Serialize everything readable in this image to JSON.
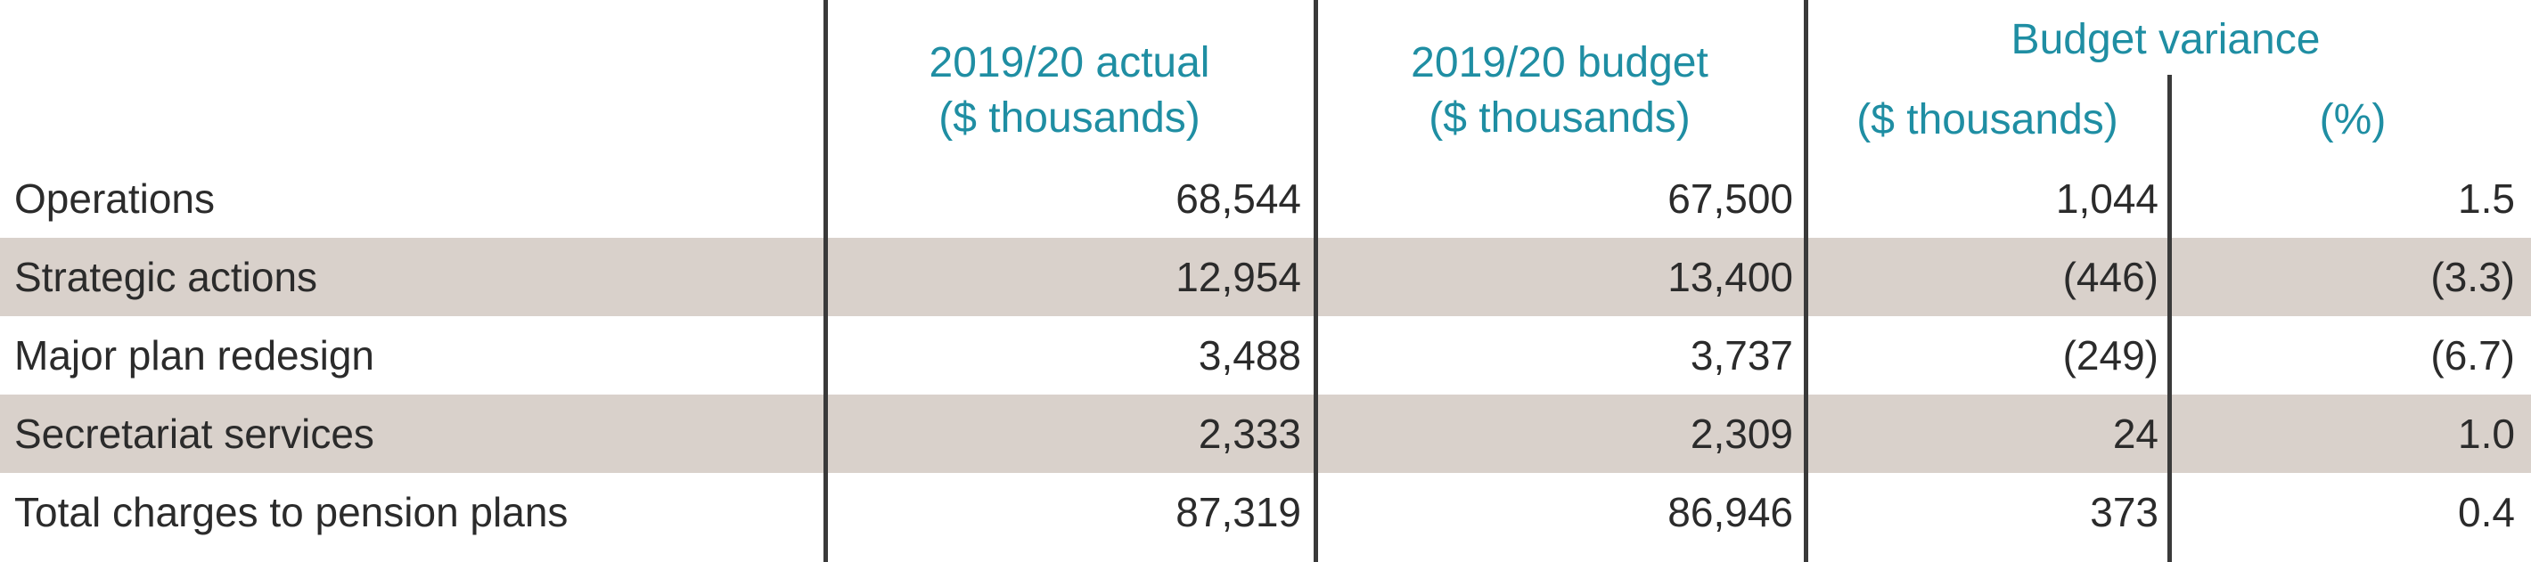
{
  "headers": {
    "actual_line1": "2019/20 actual",
    "actual_line2": "($ thousands)",
    "budget_line1": "2019/20 budget",
    "budget_line2": "($ thousands)",
    "variance_group": "Budget variance",
    "variance_amount": "($ thousands)",
    "variance_percent": "(%)"
  },
  "rows": [
    {
      "label": "Operations",
      "actual": "68,544",
      "budget": "67,500",
      "variance": "1,044",
      "percent": "1.5",
      "shaded": false
    },
    {
      "label": "Strategic actions",
      "actual": "12,954",
      "budget": "13,400",
      "variance": "(446)",
      "percent": "(3.3)",
      "shaded": true
    },
    {
      "label": "Major plan redesign",
      "actual": "3,488",
      "budget": "3,737",
      "variance": "(249)",
      "percent": "(6.7)",
      "shaded": false
    },
    {
      "label": "Secretariat services",
      "actual": "2,333",
      "budget": "2,309",
      "variance": "24",
      "percent": "1.0",
      "shaded": true
    },
    {
      "label": "Total charges to pension plans",
      "actual": "87,319",
      "budget": "86,946",
      "variance": "373",
      "percent": "0.4",
      "shaded": false
    }
  ],
  "colors": {
    "header_text": "#1f8ea3",
    "row_shading": "#d9d1cb",
    "body_text": "#2b2b2b",
    "divider": "#3a3a3a"
  }
}
